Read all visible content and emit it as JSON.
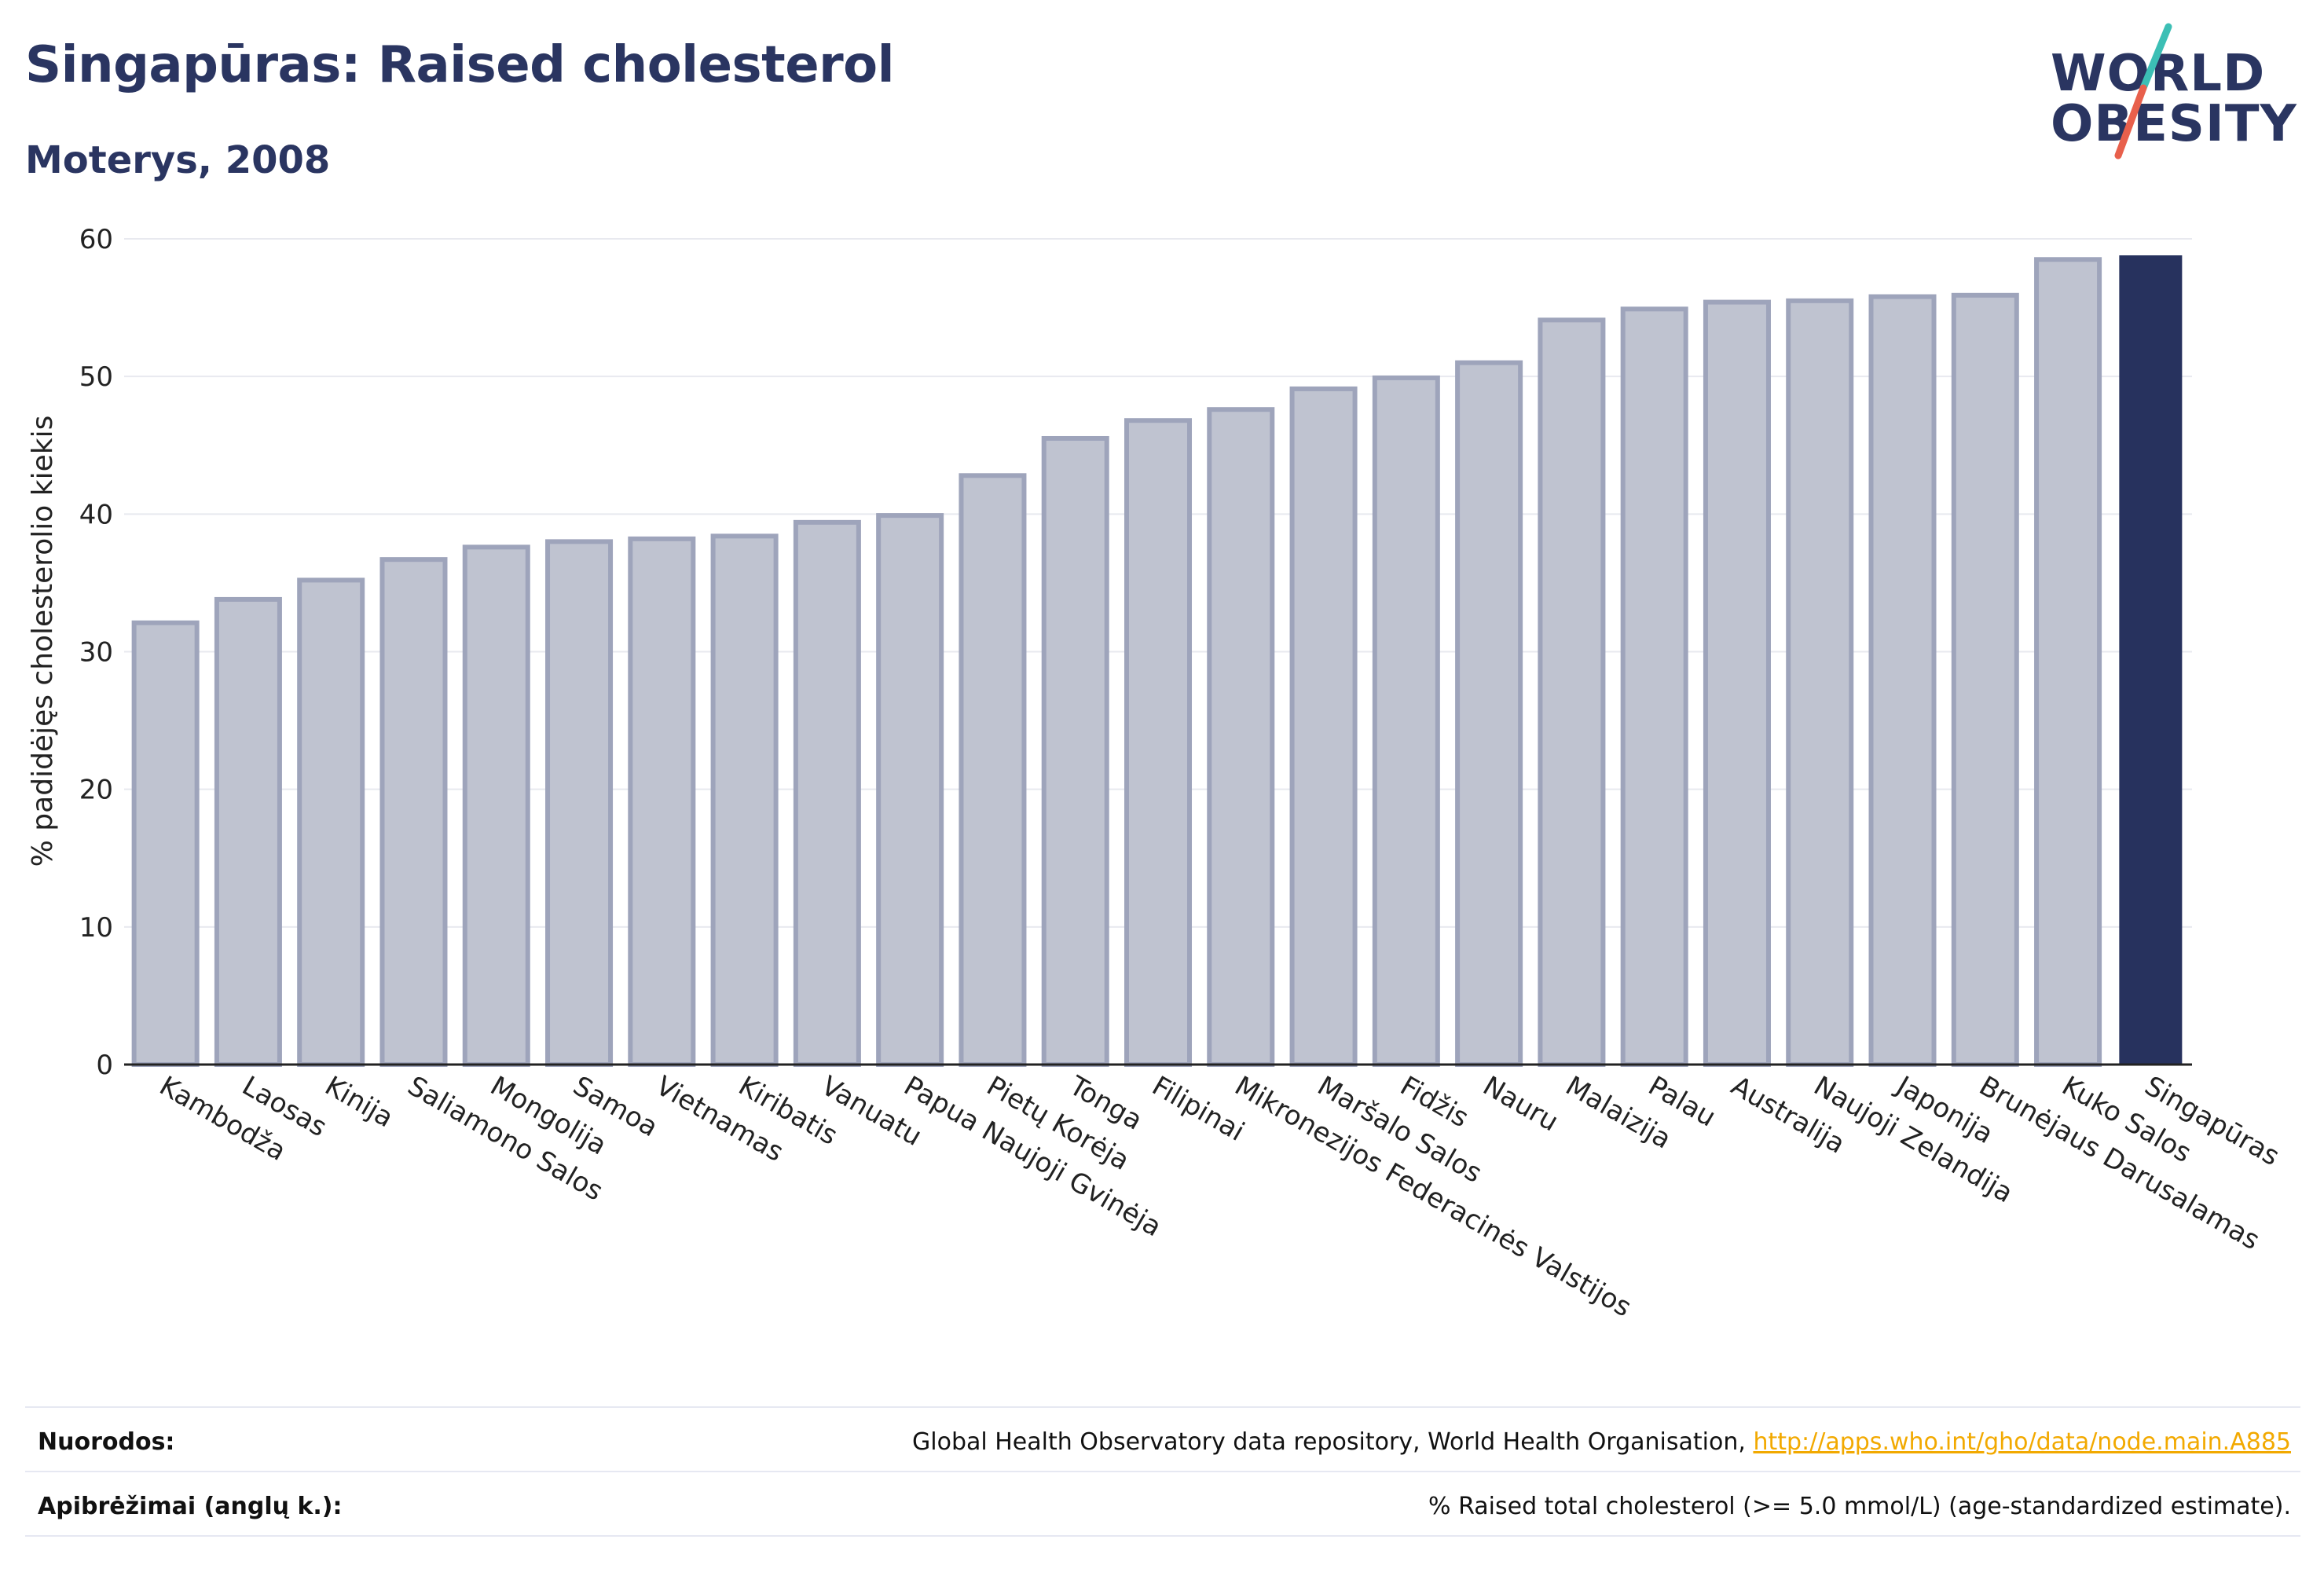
{
  "title": "Singapūras: Raised cholesterol",
  "subtitle": "Moterys, 2008",
  "logo": {
    "line1": "WORLD",
    "line2": "OBESITY",
    "accent_colors": [
      "#3cbfb5",
      "#e8604c"
    ]
  },
  "colors": {
    "highlight": "#27325e",
    "bar_fill": "#bfc3d0",
    "bar_stroke": "#9ea4bb",
    "link": "#f2a900",
    "title": "#2a3561"
  },
  "chart_data": {
    "type": "bar",
    "title": "Singapūras: Raised cholesterol",
    "subtitle": "Moterys, 2008",
    "xlabel": "",
    "ylabel": "% padidėjęs cholesterolio kiekis",
    "ylim": [
      0,
      60
    ],
    "yticks": [
      0,
      10,
      20,
      30,
      40,
      50,
      60
    ],
    "grid": true,
    "highlight": "Singapūras",
    "categories": [
      "Kambodža",
      "Laosas",
      "Kinija",
      "Saliamono Salos",
      "Mongolija",
      "Samoa",
      "Vietnamas",
      "Kiribatis",
      "Vanuatu",
      "Papua Naujoji Gvinėja",
      "Pietų Korėja",
      "Tonga",
      "Filipinai",
      "Mikronezijos Federacinės Valstijos",
      "Maršalo Salos",
      "Fidžis",
      "Nauru",
      "Malaizija",
      "Palau",
      "Australija",
      "Naujoji Zelandija",
      "Japonija",
      "Brunėjaus Darusalamas",
      "Kuko Salos",
      "Singapūras"
    ],
    "values": [
      32.1,
      33.8,
      35.2,
      36.7,
      37.6,
      38.0,
      38.2,
      38.4,
      39.4,
      39.9,
      42.8,
      45.5,
      46.8,
      47.6,
      49.1,
      49.9,
      51.0,
      54.1,
      54.9,
      55.4,
      55.5,
      55.8,
      55.9,
      58.5,
      58.8
    ]
  },
  "footer": {
    "sources_label": "Nuorodos:",
    "sources_text": "Global Health Observatory data repository, World Health Organisation, ",
    "sources_link": "http://apps.who.int/gho/data/node.main.A885",
    "definitions_label": "Apibrėžimai (anglų k.):",
    "definitions_text": "% Raised total cholesterol (>= 5.0 mmol/L) (age-standardized estimate)."
  }
}
